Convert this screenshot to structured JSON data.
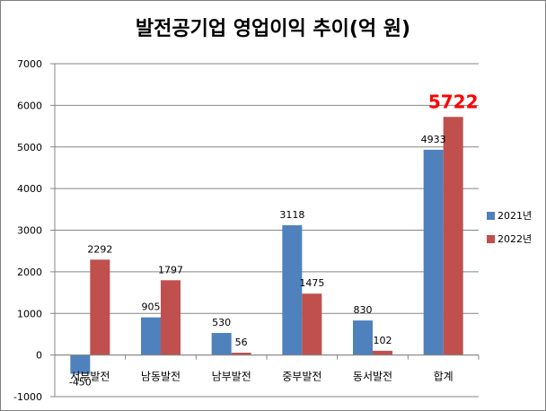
{
  "chart_data": {
    "type": "bar",
    "title": "발전공기업 영업이익 추이(억 원)",
    "categories": [
      "서부발전",
      "남동발전",
      "남부발전",
      "중부발전",
      "동서발전",
      "합계"
    ],
    "series": [
      {
        "name": "2021년",
        "color": "#4f81bd",
        "values": [
          -450,
          905,
          530,
          3118,
          830,
          4933
        ]
      },
      {
        "name": "2022년",
        "color": "#c0504d",
        "values": [
          2292,
          1797,
          56,
          1475,
          102,
          5722
        ]
      }
    ],
    "ylim": [
      -1000,
      7000
    ],
    "yticks": [
      -1000,
      0,
      1000,
      2000,
      3000,
      4000,
      5000,
      6000,
      7000
    ],
    "grid": true,
    "legend": "right",
    "highlight": {
      "series": 1,
      "category": 5,
      "color": "#ff0000"
    }
  }
}
